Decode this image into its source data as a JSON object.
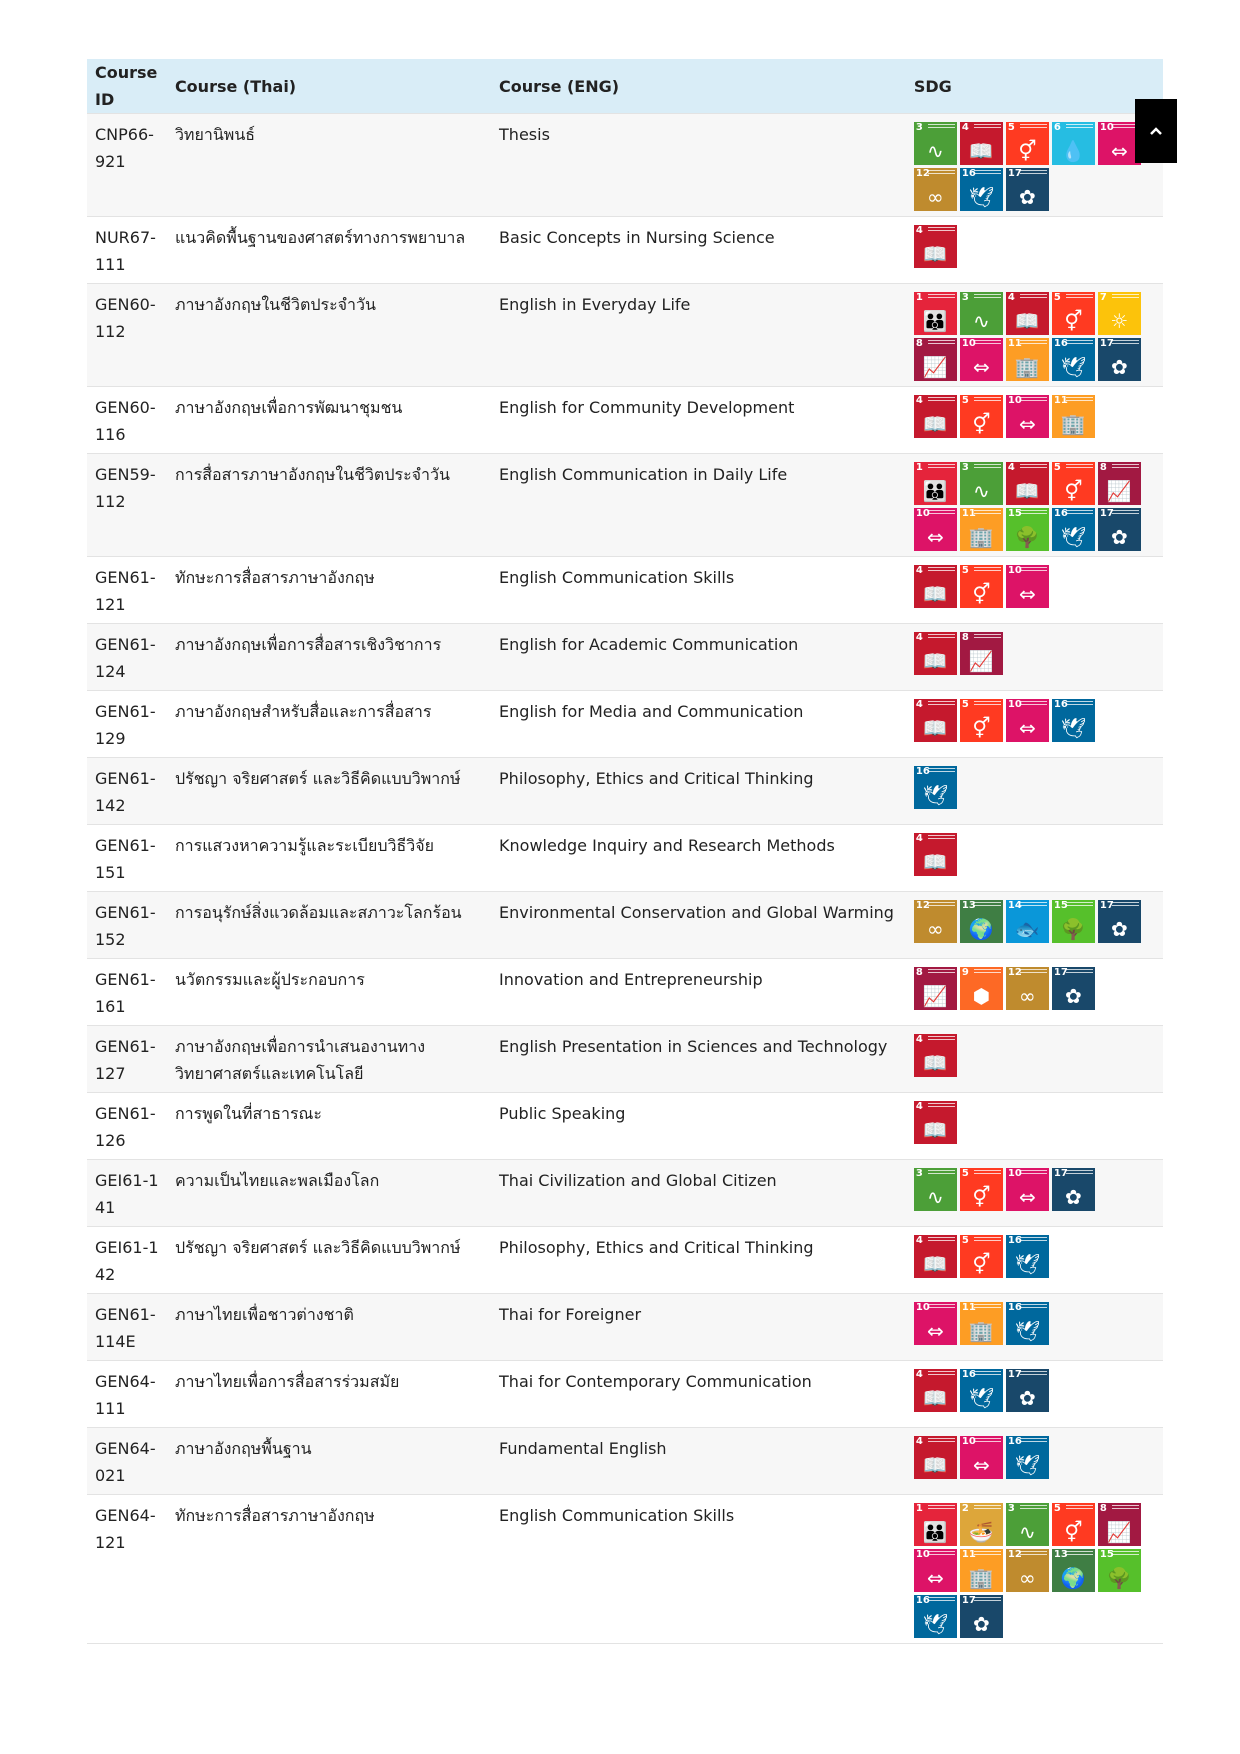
{
  "table": {
    "headers": {
      "id": "Course ID",
      "thai": "Course (Thai)",
      "eng": "Course (ENG)",
      "sdg": "SDG"
    },
    "rows": [
      {
        "id": "CNP66-921",
        "thai": "วิทยานิพนธ์",
        "eng": "Thesis",
        "sdgs": [
          3,
          4,
          5,
          6,
          10,
          12,
          16,
          17
        ]
      },
      {
        "id": "NUR67-111",
        "thai": "แนวคิดพื้นฐานของศาสตร์ทางการพยาบาล",
        "eng": "Basic Concepts in Nursing Science",
        "sdgs": [
          4
        ]
      },
      {
        "id": "GEN60-112",
        "thai": "ภาษาอังกฤษในชีวิตประจำวัน",
        "eng": "English in Everyday Life",
        "sdgs": [
          1,
          3,
          4,
          5,
          7,
          8,
          10,
          11,
          16,
          17
        ]
      },
      {
        "id": "GEN60-116",
        "thai": "ภาษาอังกฤษเพื่อการพัฒนาชุมชน",
        "eng": "English for Community Development",
        "sdgs": [
          4,
          5,
          10,
          11
        ]
      },
      {
        "id": "GEN59-112",
        "thai": "การสื่อสารภาษาอังกฤษในชีวิตประจำวัน",
        "eng": "English Communication in Daily Life",
        "sdgs": [
          1,
          3,
          4,
          5,
          8,
          10,
          11,
          15,
          16,
          17
        ]
      },
      {
        "id": "GEN61-121",
        "thai": "ทักษะการสื่อสารภาษาอังกฤษ",
        "eng": "English Communication Skills",
        "sdgs": [
          4,
          5,
          10
        ]
      },
      {
        "id": "GEN61-124",
        "thai": "ภาษาอังกฤษเพื่อการสื่อสารเชิงวิชาการ",
        "eng": "English for Academic Communication",
        "sdgs": [
          4,
          8
        ]
      },
      {
        "id": "GEN61-129",
        "thai": "ภาษาอังกฤษสำหรับสื่อและการสื่อสาร",
        "eng": "English for Media and Communication",
        "sdgs": [
          4,
          5,
          10,
          16
        ]
      },
      {
        "id": "GEN61-142",
        "thai": "ปรัชญา จริยศาสตร์ และวิธีคิดแบบวิพากษ์",
        "eng": "Philosophy, Ethics and Critical Thinking",
        "sdgs": [
          16
        ]
      },
      {
        "id": "GEN61-151",
        "thai": "การแสวงหาความรู้และระเบียบวิธีวิจัย",
        "eng": "Knowledge Inquiry and Research Methods",
        "sdgs": [
          4
        ]
      },
      {
        "id": "GEN61-152",
        "thai": "การอนุรักษ์สิ่งแวดล้อมและสภาวะโลกร้อน",
        "eng": "Environmental Conservation and Global Warming",
        "sdgs": [
          12,
          13,
          14,
          15,
          17
        ]
      },
      {
        "id": "GEN61-161",
        "thai": "นวัตกรรมและผู้ประกอบการ",
        "eng": "Innovation and Entrepreneurship",
        "sdgs": [
          8,
          9,
          12,
          17
        ]
      },
      {
        "id": "GEN61-127",
        "thai": "ภาษาอังกฤษเพื่อการนำเสนองานทางวิทยาศาสตร์และเทคโนโลยี",
        "eng": "English Presentation in Sciences and Technology",
        "sdgs": [
          4
        ]
      },
      {
        "id": "GEN61-126",
        "thai": "การพูดในที่สาธารณะ",
        "eng": "Public Speaking",
        "sdgs": [
          4
        ]
      },
      {
        "id": "GEI61-141",
        "thai": "ความเป็นไทยและพลเมืองโลก",
        "eng": "Thai Civilization and Global Citizen",
        "sdgs": [
          3,
          5,
          10,
          17
        ]
      },
      {
        "id": "GEI61-142",
        "thai": "ปรัชญา จริยศาสตร์ และวิธีคิดแบบวิพากษ์",
        "eng": "Philosophy, Ethics and Critical Thinking",
        "sdgs": [
          4,
          5,
          16
        ]
      },
      {
        "id": "GEN61-114E",
        "thai": "ภาษาไทยเพื่อชาวต่างชาติ",
        "eng": "Thai for Foreigner",
        "sdgs": [
          10,
          11,
          16
        ]
      },
      {
        "id": "GEN64-111",
        "thai": "ภาษาไทยเพื่อการสื่อสารร่วมสมัย",
        "eng": "Thai for Contemporary Communication",
        "sdgs": [
          4,
          16,
          17
        ]
      },
      {
        "id": "GEN64-021",
        "thai": "ภาษาอังกฤษพื้นฐาน",
        "eng": "Fundamental English",
        "sdgs": [
          4,
          10,
          16
        ]
      },
      {
        "id": "GEN64-121",
        "thai": "ทักษะการสื่อสารภาษาอังกฤษ",
        "eng": "English Communication Skills",
        "sdgs": [
          1,
          2,
          3,
          5,
          8,
          10,
          11,
          12,
          13,
          15,
          16,
          17
        ]
      }
    ]
  },
  "sdg_icons": {
    "1": {
      "color": "#e5243b",
      "icon": "people-icon"
    },
    "2": {
      "color": "#dda63a",
      "icon": "bowl-icon"
    },
    "3": {
      "color": "#4c9f38",
      "icon": "heartbeat-icon"
    },
    "4": {
      "color": "#c5192d",
      "icon": "book-icon"
    },
    "5": {
      "color": "#ff3a21",
      "icon": "gender-icon"
    },
    "6": {
      "color": "#26bde2",
      "icon": "water-drop-icon"
    },
    "7": {
      "color": "#fcc30b",
      "icon": "sun-icon"
    },
    "8": {
      "color": "#a21942",
      "icon": "growth-chart-icon"
    },
    "9": {
      "color": "#fd6925",
      "icon": "cubes-icon"
    },
    "10": {
      "color": "#dd1367",
      "icon": "equality-icon"
    },
    "11": {
      "color": "#fd9d24",
      "icon": "city-icon"
    },
    "12": {
      "color": "#bf8b2e",
      "icon": "infinity-icon"
    },
    "13": {
      "color": "#3f7e44",
      "icon": "eye-globe-icon"
    },
    "14": {
      "color": "#0a97d9",
      "icon": "fish-icon"
    },
    "15": {
      "color": "#56c02b",
      "icon": "tree-icon"
    },
    "16": {
      "color": "#00689d",
      "icon": "dove-icon"
    },
    "17": {
      "color": "#19486a",
      "icon": "flower-icon"
    }
  },
  "back_to_top": {
    "icon": "chevron-up-icon"
  }
}
